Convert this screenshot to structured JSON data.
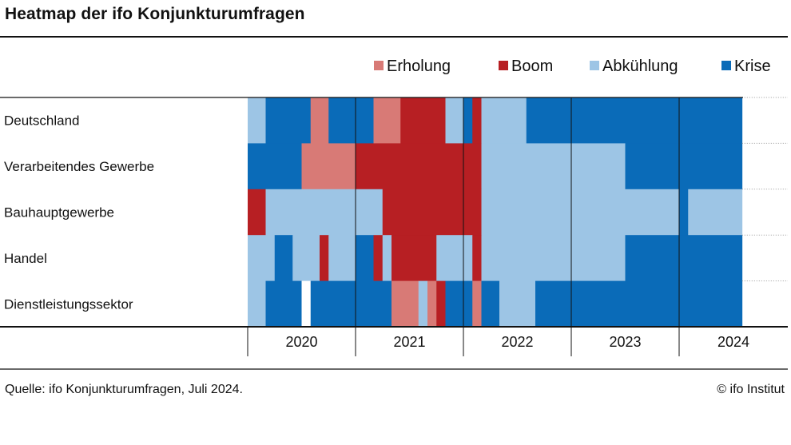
{
  "title": "Heatmap der ifo Konjunkturumfragen",
  "footer": {
    "source": "Quelle: ifo Konjunkturumfragen, Juli 2024.",
    "credit": "© ifo Institut"
  },
  "colors": {
    "Erholung": "#d87a76",
    "Boom": "#b71f23",
    "Abkühlung": "#9dc5e5",
    "Krise": "#0a6bb8",
    "Leer": "#ffffff"
  },
  "chart_data": {
    "type": "heatmap",
    "title": "Heatmap der ifo Konjunkturumfragen",
    "legend": [
      "Erholung",
      "Boom",
      "Abkühlung",
      "Krise"
    ],
    "legend_position": "top-right",
    "x_start": "2020-01",
    "x_end": "2024-07",
    "years": [
      "2020",
      "2021",
      "2022",
      "2023",
      "2024"
    ],
    "rows": [
      {
        "label": "Deutschland",
        "segments": [
          {
            "from": "2020-01",
            "to": "2020-02",
            "state": "Abkühlung"
          },
          {
            "from": "2020-03",
            "to": "2020-07",
            "state": "Krise"
          },
          {
            "from": "2020-08",
            "to": "2020-09",
            "state": "Erholung"
          },
          {
            "from": "2020-10",
            "to": "2021-02",
            "state": "Krise"
          },
          {
            "from": "2021-03",
            "to": "2021-05",
            "state": "Erholung"
          },
          {
            "from": "2021-06",
            "to": "2021-10",
            "state": "Boom"
          },
          {
            "from": "2021-11",
            "to": "2021-12",
            "state": "Abkühlung"
          },
          {
            "from": "2022-01",
            "to": "2022-01",
            "state": "Krise"
          },
          {
            "from": "2022-02",
            "to": "2022-02",
            "state": "Boom"
          },
          {
            "from": "2022-03",
            "to": "2022-07",
            "state": "Abkühlung"
          },
          {
            "from": "2022-08",
            "to": "2024-07",
            "state": "Krise"
          }
        ]
      },
      {
        "label": "Verarbeitendes Gewerbe",
        "segments": [
          {
            "from": "2020-01",
            "to": "2020-06",
            "state": "Krise"
          },
          {
            "from": "2020-07",
            "to": "2020-12",
            "state": "Erholung"
          },
          {
            "from": "2021-01",
            "to": "2022-02",
            "state": "Boom"
          },
          {
            "from": "2022-03",
            "to": "2023-06",
            "state": "Abkühlung"
          },
          {
            "from": "2023-07",
            "to": "2024-07",
            "state": "Krise"
          }
        ]
      },
      {
        "label": "Bauhauptgewerbe",
        "segments": [
          {
            "from": "2020-01",
            "to": "2020-02",
            "state": "Boom"
          },
          {
            "from": "2020-03",
            "to": "2021-03",
            "state": "Abkühlung"
          },
          {
            "from": "2021-04",
            "to": "2022-02",
            "state": "Boom"
          },
          {
            "from": "2022-03",
            "to": "2023-12",
            "state": "Abkühlung"
          },
          {
            "from": "2024-01",
            "to": "2024-01",
            "state": "Krise"
          },
          {
            "from": "2024-02",
            "to": "2024-07",
            "state": "Abkühlung"
          }
        ]
      },
      {
        "label": "Handel",
        "segments": [
          {
            "from": "2020-01",
            "to": "2020-03",
            "state": "Abkühlung"
          },
          {
            "from": "2020-04",
            "to": "2020-05",
            "state": "Krise"
          },
          {
            "from": "2020-06",
            "to": "2020-08",
            "state": "Abkühlung"
          },
          {
            "from": "2020-09",
            "to": "2020-09",
            "state": "Boom"
          },
          {
            "from": "2020-10",
            "to": "2020-12",
            "state": "Abkühlung"
          },
          {
            "from": "2021-01",
            "to": "2021-02",
            "state": "Krise"
          },
          {
            "from": "2021-03",
            "to": "2021-03",
            "state": "Boom"
          },
          {
            "from": "2021-04",
            "to": "2021-04",
            "state": "Abkühlung"
          },
          {
            "from": "2021-05",
            "to": "2021-09",
            "state": "Boom"
          },
          {
            "from": "2021-10",
            "to": "2022-01",
            "state": "Abkühlung"
          },
          {
            "from": "2022-02",
            "to": "2022-02",
            "state": "Boom"
          },
          {
            "from": "2022-03",
            "to": "2023-06",
            "state": "Abkühlung"
          },
          {
            "from": "2023-07",
            "to": "2024-07",
            "state": "Krise"
          }
        ]
      },
      {
        "label": "Dienstleistungssektor",
        "segments": [
          {
            "from": "2020-01",
            "to": "2020-02",
            "state": "Abkühlung"
          },
          {
            "from": "2020-03",
            "to": "2020-06",
            "state": "Krise"
          },
          {
            "from": "2020-07",
            "to": "2020-07",
            "state": "Leer"
          },
          {
            "from": "2020-08",
            "to": "2021-04",
            "state": "Krise"
          },
          {
            "from": "2021-05",
            "to": "2021-07",
            "state": "Erholung"
          },
          {
            "from": "2021-08",
            "to": "2021-08",
            "state": "Abkühlung"
          },
          {
            "from": "2021-09",
            "to": "2021-09",
            "state": "Erholung"
          },
          {
            "from": "2021-10",
            "to": "2021-10",
            "state": "Boom"
          },
          {
            "from": "2021-11",
            "to": "2022-01",
            "state": "Krise"
          },
          {
            "from": "2022-02",
            "to": "2022-02",
            "state": "Erholung"
          },
          {
            "from": "2022-03",
            "to": "2022-04",
            "state": "Krise"
          },
          {
            "from": "2022-05",
            "to": "2022-08",
            "state": "Abkühlung"
          },
          {
            "from": "2022-09",
            "to": "2024-07",
            "state": "Krise"
          }
        ]
      }
    ]
  }
}
